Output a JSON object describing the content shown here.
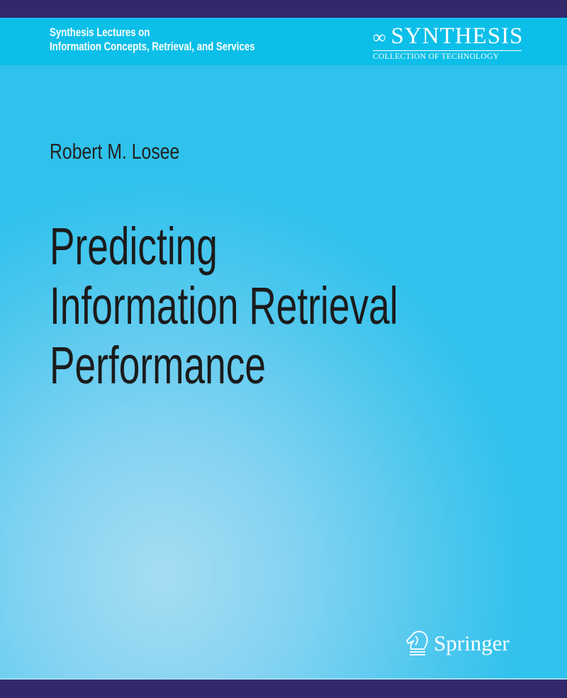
{
  "series": {
    "line1": "Synthesis Lectures on",
    "line2": "Information Concepts, Retrieval, and Services"
  },
  "synthesis_logo": {
    "wordmark": "SYNTHESIS",
    "tagline": "COLLECTION OF TECHNOLOGY",
    "icon": "infinity-loop-icon"
  },
  "author": "Robert M. Losee",
  "title": {
    "line1": "Predicting",
    "line2": "Information Retrieval",
    "line3": "Performance"
  },
  "publisher": {
    "name": "Springer",
    "icon": "knight-horse-icon"
  },
  "colors": {
    "band": "#32286a",
    "header": "#0bbfe9",
    "background": "#7fd2f1"
  }
}
